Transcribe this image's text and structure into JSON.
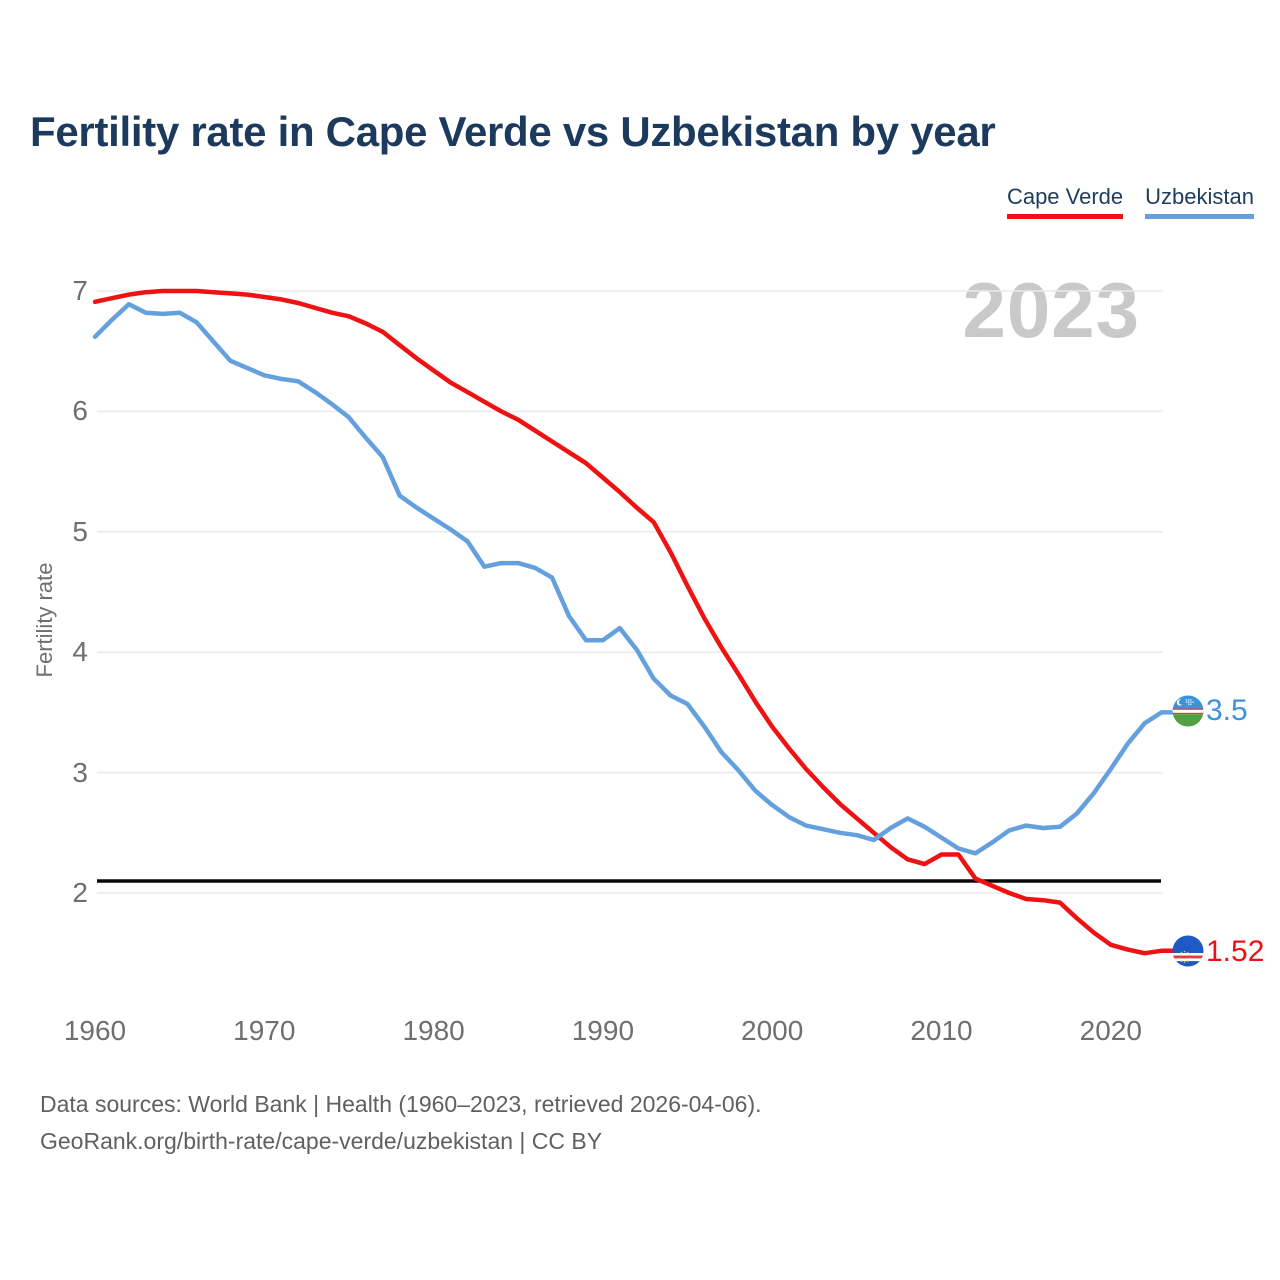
{
  "title": "Fertility rate in Cape Verde vs Uzbekistan by year",
  "watermark": "2023",
  "legend": {
    "items": [
      {
        "label": "Cape Verde",
        "color": "#f01212"
      },
      {
        "label": "Uzbekistan",
        "color": "#64a0dd"
      }
    ]
  },
  "y_axis": {
    "label": "Fertility rate",
    "ticks": [
      7,
      6,
      5,
      4,
      3,
      2
    ]
  },
  "x_axis": {
    "ticks": [
      1960,
      1970,
      1980,
      1990,
      2000,
      2010,
      2020
    ]
  },
  "reference_line": {
    "value": 2.1,
    "color": "#0a0a0a"
  },
  "end_labels": [
    {
      "series": "Uzbekistan",
      "text": "3.5",
      "color": "#3f90de"
    },
    {
      "series": "Cape Verde",
      "text": "1.52",
      "color": "#ee1111"
    }
  ],
  "footer": {
    "line1": "Data sources: World Bank | Health (1960–2023, retrieved 2026-04-06).",
    "line2": "GeoRank.org/birth-rate/cape-verde/uzbekistan | CC BY"
  },
  "chart_data": {
    "type": "line",
    "title": "Fertility rate in Cape Verde vs Uzbekistan by year",
    "xlabel": "",
    "ylabel": "Fertility rate",
    "ylim": [
      1.3,
      7.25
    ],
    "xlim": [
      1960,
      2023
    ],
    "grid": "horizontal",
    "legend_position": "top-right",
    "annotations": {
      "replacement_level_line": 2.1,
      "year_watermark": "2023"
    },
    "x": [
      1960,
      1961,
      1962,
      1963,
      1964,
      1965,
      1966,
      1967,
      1968,
      1969,
      1970,
      1971,
      1972,
      1973,
      1974,
      1975,
      1976,
      1977,
      1978,
      1979,
      1980,
      1981,
      1982,
      1983,
      1984,
      1985,
      1986,
      1987,
      1988,
      1989,
      1990,
      1991,
      1992,
      1993,
      1994,
      1995,
      1996,
      1997,
      1998,
      1999,
      2000,
      2001,
      2002,
      2003,
      2004,
      2005,
      2006,
      2007,
      2008,
      2009,
      2010,
      2011,
      2012,
      2013,
      2014,
      2015,
      2016,
      2017,
      2018,
      2019,
      2020,
      2021,
      2022,
      2023
    ],
    "series": [
      {
        "name": "Cape Verde",
        "color": "#f01212",
        "end_value": 1.52,
        "values": [
          6.91,
          6.94,
          6.97,
          6.99,
          7.0,
          7.0,
          7.0,
          6.99,
          6.98,
          6.97,
          6.95,
          6.93,
          6.9,
          6.86,
          6.82,
          6.79,
          6.73,
          6.66,
          6.55,
          6.44,
          6.34,
          6.24,
          6.16,
          6.08,
          6.0,
          5.93,
          5.84,
          5.75,
          5.66,
          5.57,
          5.45,
          5.33,
          5.2,
          5.08,
          4.83,
          4.55,
          4.28,
          4.04,
          3.82,
          3.59,
          3.38,
          3.2,
          3.03,
          2.88,
          2.74,
          2.62,
          2.5,
          2.38,
          2.28,
          2.24,
          2.32,
          2.32,
          2.12,
          2.06,
          2.0,
          1.95,
          1.94,
          1.92,
          1.79,
          1.67,
          1.57,
          1.53,
          1.5,
          1.52
        ]
      },
      {
        "name": "Uzbekistan",
        "color": "#64a0dd",
        "end_value": 3.5,
        "values": [
          6.62,
          6.76,
          6.89,
          6.82,
          6.81,
          6.82,
          6.74,
          6.58,
          6.42,
          6.36,
          6.3,
          6.27,
          6.25,
          6.16,
          6.06,
          5.95,
          5.78,
          5.62,
          5.3,
          5.2,
          5.11,
          5.02,
          4.92,
          4.71,
          4.74,
          4.74,
          4.7,
          4.62,
          4.3,
          4.1,
          4.1,
          4.2,
          4.02,
          3.78,
          3.64,
          3.57,
          3.38,
          3.17,
          3.02,
          2.85,
          2.73,
          2.63,
          2.56,
          2.53,
          2.5,
          2.48,
          2.44,
          2.54,
          2.62,
          2.55,
          2.46,
          2.37,
          2.33,
          2.42,
          2.52,
          2.56,
          2.54,
          2.55,
          2.66,
          2.83,
          3.03,
          3.24,
          3.41,
          3.5
        ]
      }
    ]
  }
}
